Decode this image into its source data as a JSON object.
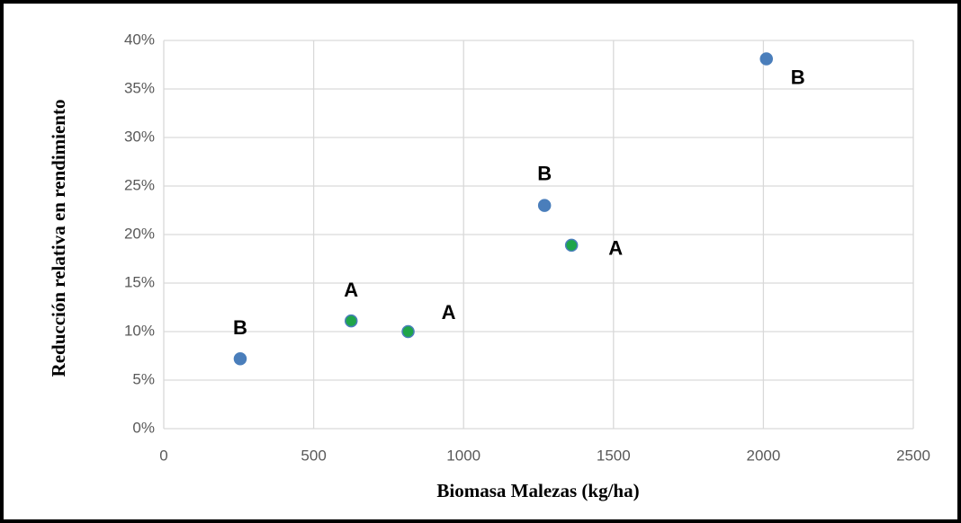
{
  "chart_data": {
    "type": "scatter",
    "x_label": "Biomasa Malezas (kg/ha)",
    "y_label": "Reducción relativa en rendimiento",
    "series": [
      {
        "color": "#4a7ebb",
        "edge": "#4a7ebb",
        "x": [
          255,
          1270,
          2010
        ],
        "values": [
          7.2,
          23.0,
          38.1
        ],
        "point_labels": [
          "B",
          "B",
          "B"
        ]
      },
      {
        "color": "#1fa54a",
        "edge": "#4a7ebb",
        "x": [
          625,
          815,
          1360
        ],
        "values": [
          11.1,
          10.0,
          18.9
        ],
        "point_labels": [
          "A",
          "A",
          "A"
        ]
      }
    ],
    "xlim": [
      0,
      2500
    ],
    "xticks": [
      0,
      500,
      1000,
      1500,
      2000,
      2500
    ],
    "ylim": [
      0,
      40
    ],
    "yticks": [
      {
        "value": 0,
        "label": "0%"
      },
      {
        "value": 5,
        "label": "5%"
      },
      {
        "value": 10,
        "label": "10%"
      },
      {
        "value": 15,
        "label": "15%"
      },
      {
        "value": 20,
        "label": "20%"
      },
      {
        "value": 25,
        "label": "25%"
      },
      {
        "value": 30,
        "label": "30%"
      },
      {
        "value": 35,
        "label": "35%"
      },
      {
        "value": 40,
        "label": "40%"
      }
    ],
    "grid": true
  }
}
